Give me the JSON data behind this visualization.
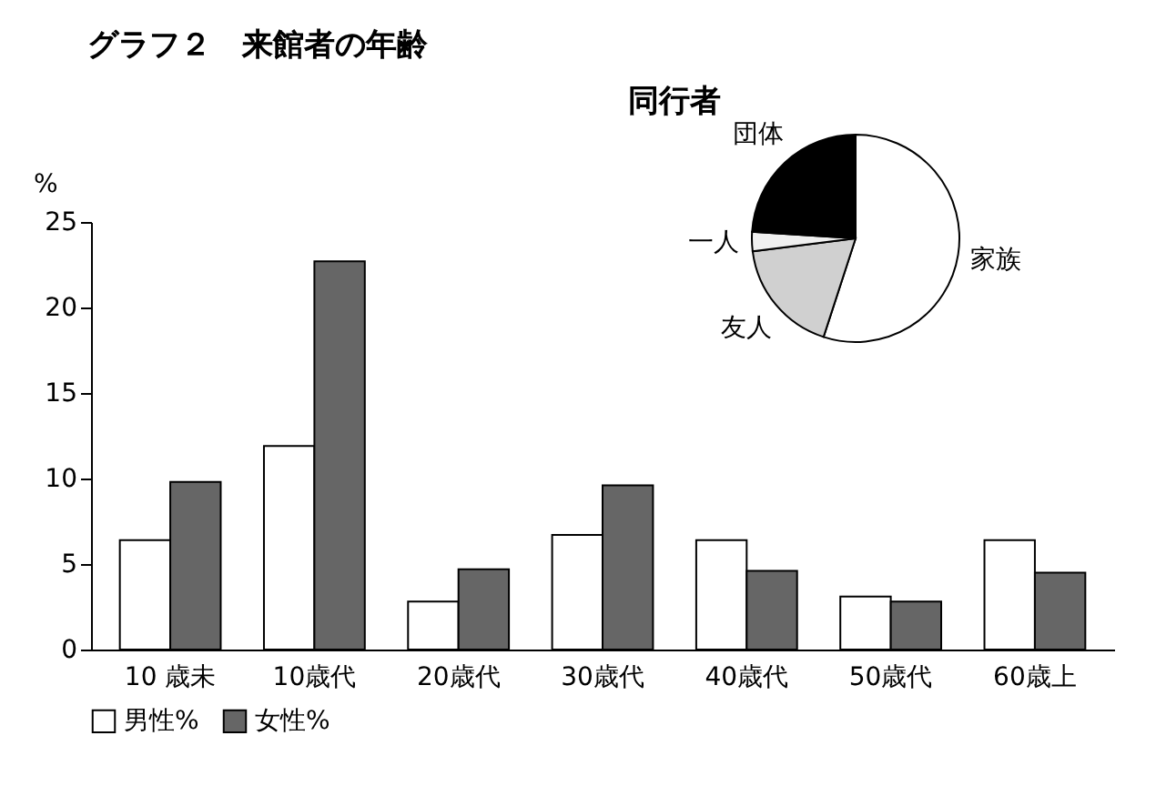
{
  "chart_data": [
    {
      "type": "bar",
      "title": "グラフ２　来館者の年齢",
      "ylabel": "%",
      "categories": [
        "10 歳未",
        "10歳代",
        "20歳代",
        "30歳代",
        "40歳代",
        "50歳代",
        "60歳上"
      ],
      "series": [
        {
          "name": "男性%",
          "color": "#ffffff",
          "values": [
            6.4,
            11.9,
            2.8,
            6.7,
            6.4,
            3.1,
            6.4
          ]
        },
        {
          "name": "女性%",
          "color": "#666666",
          "values": [
            9.8,
            22.7,
            4.7,
            9.6,
            4.6,
            2.8,
            4.5
          ]
        }
      ],
      "ylim": [
        0,
        25
      ],
      "yticks": [
        0,
        5,
        10,
        15,
        20,
        25
      ],
      "legend": "bottom"
    },
    {
      "type": "pie",
      "title": "同行者",
      "categories": [
        "家族",
        "友人",
        "一人",
        "団体"
      ],
      "values": [
        55,
        18,
        3,
        24
      ],
      "colors": [
        "#ffffff",
        "#d0d0d0",
        "#f0f0f0",
        "#000000"
      ]
    }
  ]
}
